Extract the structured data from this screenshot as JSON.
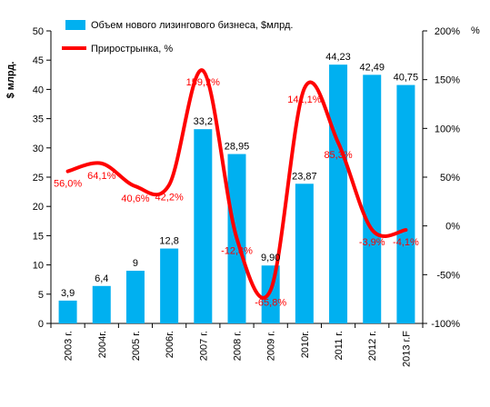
{
  "chart_data": {
    "type": "bar+line",
    "categories": [
      "2003 г.",
      "2004г.",
      "2005 г.",
      "2006г.",
      "2007 г.",
      "2008 г.",
      "2009 г.",
      "2010г.",
      "2011 г.",
      "2012 г.",
      "2013 г.F"
    ],
    "series": [
      {
        "name": "Объем нового лизингового бизнеса, $млрд.",
        "type": "bar",
        "axis": "left",
        "color": "#00b0f0",
        "values": [
          3.9,
          6.4,
          9,
          12.8,
          33.2,
          28.95,
          9.9,
          23.87,
          44.23,
          42.49,
          40.75
        ],
        "labels": [
          "3,9",
          "6,4",
          "9",
          "12,8",
          "33,2",
          "28,95",
          "9,90",
          "23,87",
          "44,23",
          "42,49",
          "40,75"
        ]
      },
      {
        "name": "Прирострынка, %",
        "type": "line",
        "axis": "right",
        "color": "#ff0000",
        "values": [
          56.0,
          64.1,
          40.6,
          42.2,
          159.2,
          -12.8,
          -65.8,
          141.1,
          85.3,
          -3.9,
          -4.1
        ],
        "labels": [
          "56,0%",
          "64,1%",
          "40,6%",
          "42,2%",
          "159,2%",
          "-12,8%",
          "-65,8%",
          "141,1%",
          "85,3%",
          "-3,9%",
          "-4,1%"
        ]
      }
    ],
    "y_left": {
      "label": "$ млрд.",
      "range": [
        0,
        50
      ],
      "ticks": [
        "0",
        "5",
        "10",
        "15",
        "20",
        "25",
        "30",
        "35",
        "40",
        "45",
        "50"
      ]
    },
    "y_right": {
      "label": "%",
      "range": [
        -100,
        200
      ],
      "ticks": [
        "-100%",
        "-50%",
        "0%",
        "50%",
        "100%",
        "150%",
        "200%"
      ]
    },
    "grid": false,
    "legend": "top-left"
  }
}
